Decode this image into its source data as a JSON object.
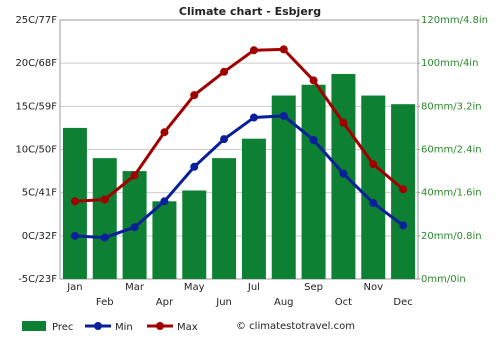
{
  "chart_data": {
    "type": "bar",
    "title": "Climate chart - Esbjerg",
    "categories": [
      "Jan",
      "Feb",
      "Mar",
      "Apr",
      "May",
      "Jun",
      "Jul",
      "Aug",
      "Sep",
      "Oct",
      "Nov",
      "Dec"
    ],
    "series": [
      {
        "name": "Prec",
        "type": "bar",
        "axis": "y2",
        "color": "#0e8033",
        "values": [
          70,
          56,
          50,
          36,
          41,
          56,
          65,
          85,
          90,
          95,
          85,
          81
        ]
      },
      {
        "name": "Min",
        "type": "line",
        "color": "#0a1f9a",
        "values": [
          0,
          -0.2,
          1,
          4,
          8,
          11.2,
          13.7,
          13.9,
          11.1,
          7.2,
          3.8,
          1.2
        ]
      },
      {
        "name": "Max",
        "type": "line",
        "color": "#a00000",
        "values": [
          4,
          4.2,
          7,
          12,
          16.3,
          19,
          21.5,
          21.6,
          18,
          13.1,
          8.3,
          5.4
        ]
      }
    ],
    "ylim": [
      -5,
      25
    ],
    "yticks": [
      {
        "value": -5,
        "label": "-5C/23F"
      },
      {
        "value": 0,
        "label": "0C/32F"
      },
      {
        "value": 5,
        "label": "5C/41F"
      },
      {
        "value": 10,
        "label": "10C/50F"
      },
      {
        "value": 15,
        "label": "15C/59F"
      },
      {
        "value": 20,
        "label": "20C/68F"
      },
      {
        "value": 25,
        "label": "25C/77F"
      }
    ],
    "y2lim": [
      0,
      120
    ],
    "y2ticks": [
      {
        "value": 0,
        "label": "0mm/0in"
      },
      {
        "value": 20,
        "label": "20mm/0.8in"
      },
      {
        "value": 40,
        "label": "40mm/1.6in"
      },
      {
        "value": 60,
        "label": "60mm/2.4in"
      },
      {
        "value": 80,
        "label": "80mm/3.2in"
      },
      {
        "value": 100,
        "label": "100mm/4in"
      },
      {
        "value": 120,
        "label": "120mm/4.8in"
      }
    ],
    "grid": true,
    "credit": "© climatestotravel.com"
  }
}
